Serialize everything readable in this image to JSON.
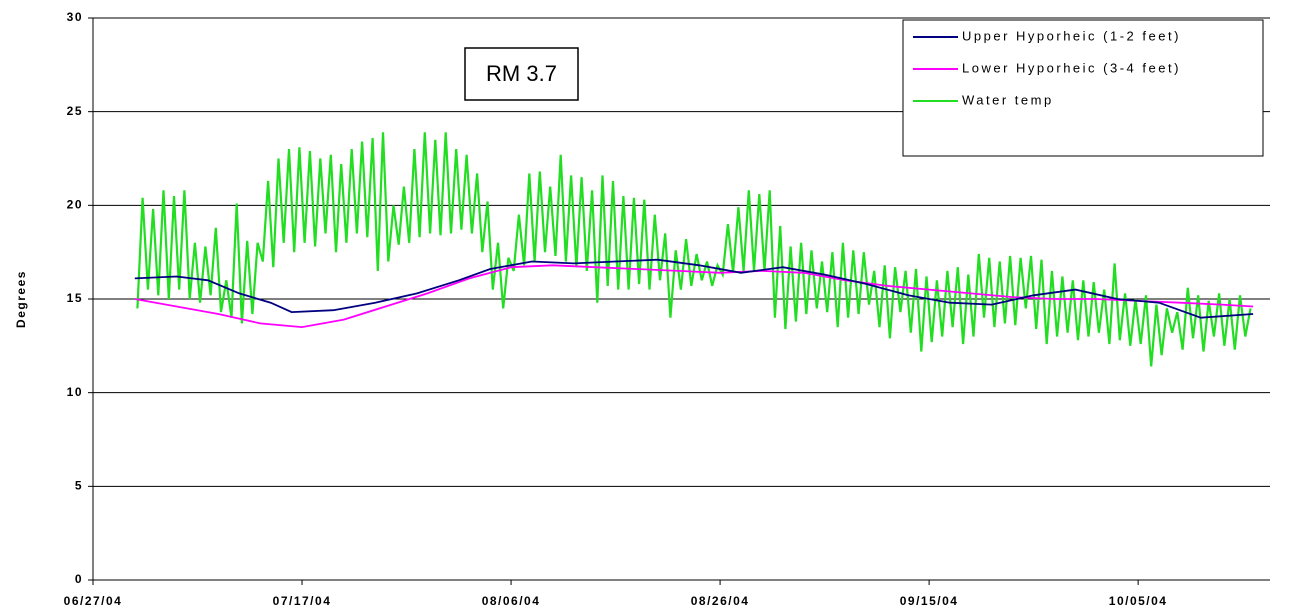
{
  "chart_data": {
    "type": "line",
    "title": "RM 3.7",
    "y_label": "Degrees",
    "xlim": [
      "2004-06-27",
      "2004-10-18"
    ],
    "xticks": [
      {
        "value": "2004-06-27",
        "label": "06/27/04"
      },
      {
        "value": "2004-07-17",
        "label": "07/17/04"
      },
      {
        "value": "2004-08-06",
        "label": "08/06/04"
      },
      {
        "value": "2004-08-26",
        "label": "08/26/04"
      },
      {
        "value": "2004-09-15",
        "label": "09/15/04"
      },
      {
        "value": "2004-10-05",
        "label": "10/05/04"
      }
    ],
    "ylim": [
      0,
      30
    ],
    "yticks": [
      0,
      5,
      10,
      15,
      20,
      25,
      30
    ],
    "grid": true,
    "legend": "upper right",
    "series": [
      {
        "name": "Upper Hyporheic (1-2 feet)",
        "color": "#000080",
        "x": [
          "2004-07-01",
          "2004-07-05",
          "2004-07-08",
          "2004-07-11",
          "2004-07-14",
          "2004-07-16",
          "2004-07-20",
          "2004-07-24",
          "2004-07-28",
          "2004-08-01",
          "2004-08-04",
          "2004-08-08",
          "2004-08-12",
          "2004-08-16",
          "2004-08-20",
          "2004-08-24",
          "2004-08-28",
          "2004-09-01",
          "2004-09-05",
          "2004-09-09",
          "2004-09-13",
          "2004-09-17",
          "2004-09-21",
          "2004-09-25",
          "2004-09-29",
          "2004-10-03",
          "2004-10-07",
          "2004-10-11",
          "2004-10-16"
        ],
        "values": [
          16.1,
          16.2,
          16.0,
          15.3,
          14.8,
          14.3,
          14.4,
          14.8,
          15.3,
          16.0,
          16.6,
          17.0,
          16.9,
          17.0,
          17.1,
          16.8,
          16.4,
          16.7,
          16.3,
          15.8,
          15.2,
          14.8,
          14.7,
          15.2,
          15.5,
          15.0,
          14.8,
          14.0,
          14.2
        ]
      },
      {
        "name": "Lower Hyporheic (3-4 feet)",
        "color": "#ff00ff",
        "x": [
          "2004-07-01",
          "2004-07-05",
          "2004-07-09",
          "2004-07-13",
          "2004-07-17",
          "2004-07-21",
          "2004-07-25",
          "2004-07-29",
          "2004-08-02",
          "2004-08-06",
          "2004-08-10",
          "2004-08-14",
          "2004-08-18",
          "2004-08-22",
          "2004-08-26",
          "2004-08-30",
          "2004-09-03",
          "2004-09-07",
          "2004-09-11",
          "2004-09-15",
          "2004-09-19",
          "2004-09-23",
          "2004-09-27",
          "2004-10-01",
          "2004-10-05",
          "2004-10-09",
          "2004-10-13",
          "2004-10-16"
        ],
        "values": [
          15.0,
          14.6,
          14.2,
          13.7,
          13.5,
          13.9,
          14.6,
          15.3,
          16.1,
          16.7,
          16.8,
          16.7,
          16.6,
          16.5,
          16.4,
          16.5,
          16.4,
          16.0,
          15.7,
          15.5,
          15.3,
          15.1,
          15.0,
          15.0,
          14.9,
          14.8,
          14.7,
          14.6
        ]
      },
      {
        "name": "Water temp",
        "color": "#22dd22",
        "x": [],
        "values": []
      }
    ]
  }
}
